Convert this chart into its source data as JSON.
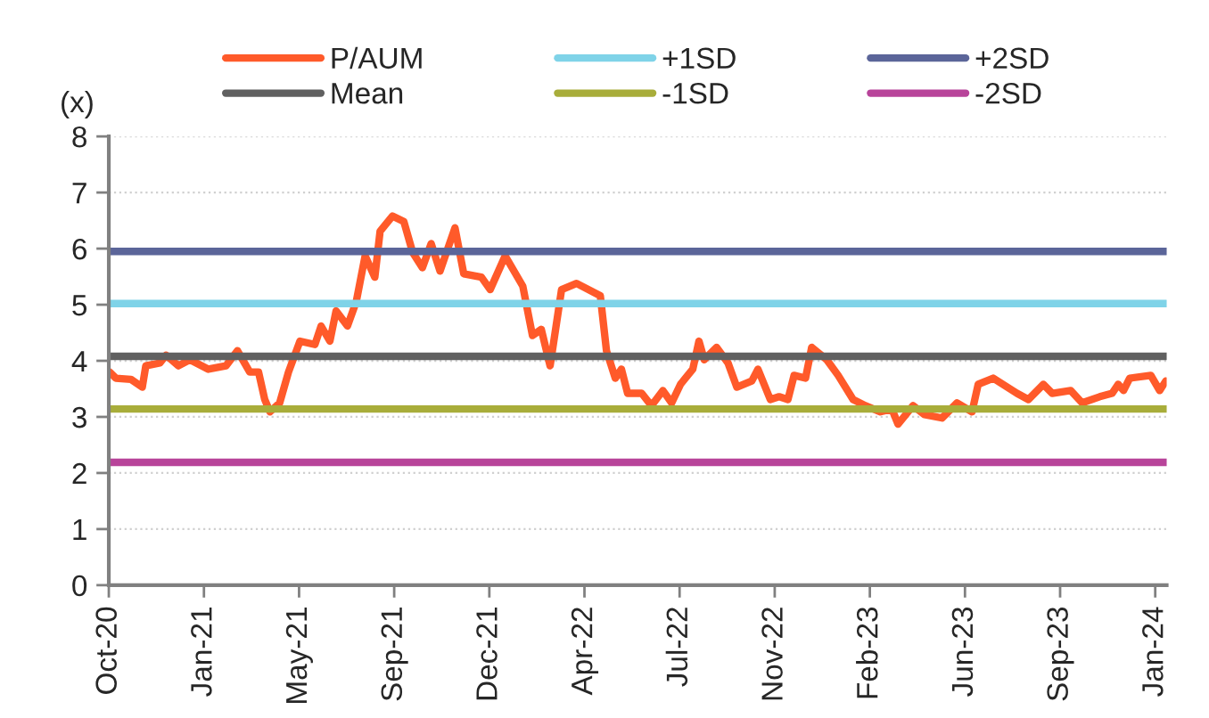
{
  "chart_data": {
    "type": "line",
    "ylabel": "(x)",
    "ylim": [
      0,
      8
    ],
    "yticks": [
      0,
      1,
      2,
      3,
      4,
      5,
      6,
      7,
      8
    ],
    "xlim": [
      "2020-10-15",
      "2024-01-29"
    ],
    "xticks": [
      {
        "value": "2020-10-15",
        "label": "Oct-20"
      },
      {
        "value": "2021-01-31",
        "label": "Jan-21"
      },
      {
        "value": "2021-05-19",
        "label": "May-21"
      },
      {
        "value": "2021-09-04",
        "label": "Sep-21"
      },
      {
        "value": "2021-12-21",
        "label": "Dec-21"
      },
      {
        "value": "2022-04-08",
        "label": "Apr-22"
      },
      {
        "value": "2022-07-25",
        "label": "Jul-22"
      },
      {
        "value": "2022-11-10",
        "label": "Nov-22"
      },
      {
        "value": "2023-02-26",
        "label": "Feb-23"
      },
      {
        "value": "2023-06-14",
        "label": "Jun-23"
      },
      {
        "value": "2023-09-30",
        "label": "Sep-23"
      },
      {
        "value": "2024-01-16",
        "label": "Jan-24"
      }
    ],
    "grid": "y",
    "legend": "top",
    "marker": "none",
    "line_style": "solid",
    "series": [
      {
        "name": "P/AUM",
        "color": "#ff5a2a",
        "x": [
          "2020-10-16",
          "2020-10-23",
          "2020-11-09",
          "2020-11-22",
          "2020-11-26",
          "2020-12-12",
          "2020-12-19",
          "2021-01-02",
          "2021-01-15",
          "2021-02-05",
          "2021-02-25",
          "2021-03-10",
          "2021-03-24",
          "2021-04-03",
          "2021-04-10",
          "2021-04-16",
          "2021-04-27",
          "2021-05-07",
          "2021-05-20",
          "2021-06-06",
          "2021-06-13",
          "2021-06-23",
          "2021-06-30",
          "2021-07-13",
          "2021-07-23",
          "2021-08-02",
          "2021-08-13",
          "2021-08-19",
          "2021-09-02",
          "2021-09-15",
          "2021-09-25",
          "2021-10-06",
          "2021-10-16",
          "2021-10-26",
          "2021-11-12",
          "2021-11-22",
          "2021-12-12",
          "2021-12-22",
          "2022-01-08",
          "2022-01-28",
          "2022-02-08",
          "2022-02-18",
          "2022-02-28",
          "2022-03-13",
          "2022-03-30",
          "2022-04-26",
          "2022-05-03",
          "2022-05-13",
          "2022-05-20",
          "2022-05-27",
          "2022-06-12",
          "2022-06-23",
          "2022-07-06",
          "2022-07-16",
          "2022-07-26",
          "2022-08-09",
          "2022-08-16",
          "2022-08-22",
          "2022-09-05",
          "2022-09-18",
          "2022-09-28",
          "2022-10-15",
          "2022-10-22",
          "2022-11-05",
          "2022-11-15",
          "2022-11-25",
          "2022-12-02",
          "2022-12-15",
          "2022-12-22",
          "2023-01-08",
          "2023-01-21",
          "2023-02-07",
          "2023-02-21",
          "2023-03-10",
          "2023-03-23",
          "2023-03-30",
          "2023-04-16",
          "2023-04-29",
          "2023-05-19",
          "2023-06-05",
          "2023-06-22",
          "2023-06-29",
          "2023-07-16",
          "2023-08-12",
          "2023-08-25",
          "2023-09-11",
          "2023-09-21",
          "2023-10-12",
          "2023-10-25",
          "2023-11-14",
          "2023-11-28",
          "2023-12-05",
          "2023-12-11",
          "2023-12-18",
          "2024-01-11",
          "2024-01-21",
          "2024-01-28"
        ],
        "values": [
          3.8,
          3.69,
          3.67,
          3.53,
          3.91,
          3.96,
          4.1,
          3.91,
          4.02,
          3.85,
          3.91,
          4.18,
          3.8,
          3.8,
          3.31,
          3.09,
          3.25,
          3.8,
          4.35,
          4.29,
          4.62,
          4.35,
          4.89,
          4.62,
          5.06,
          5.87,
          5.49,
          6.31,
          6.58,
          6.48,
          5.93,
          5.66,
          6.09,
          5.6,
          6.37,
          5.55,
          5.49,
          5.27,
          5.87,
          5.33,
          4.45,
          4.56,
          3.91,
          5.27,
          5.38,
          5.16,
          4.18,
          3.69,
          3.85,
          3.42,
          3.42,
          3.2,
          3.47,
          3.25,
          3.58,
          3.85,
          4.35,
          4.02,
          4.24,
          3.96,
          3.53,
          3.64,
          3.85,
          3.31,
          3.36,
          3.31,
          3.74,
          3.69,
          4.24,
          4.02,
          3.74,
          3.31,
          3.2,
          3.09,
          3.14,
          2.87,
          3.2,
          3.04,
          2.98,
          3.25,
          3.09,
          3.58,
          3.69,
          3.42,
          3.31,
          3.58,
          3.42,
          3.47,
          3.25,
          3.36,
          3.42,
          3.58,
          3.47,
          3.69,
          3.74,
          3.47,
          3.64
        ]
      },
      {
        "name": "Mean",
        "color": "#606060",
        "x": [
          "2020-10-15",
          "2024-01-29"
        ],
        "values": [
          4.08,
          4.08
        ]
      },
      {
        "name": "+1SD",
        "color": "#7fd3e8",
        "x": [
          "2020-10-15",
          "2024-01-29"
        ],
        "values": [
          5.02,
          5.02
        ]
      },
      {
        "name": "-1SD",
        "color": "#a8ad3a",
        "x": [
          "2020-10-15",
          "2024-01-29"
        ],
        "values": [
          3.14,
          3.14
        ]
      },
      {
        "name": "+2SD",
        "color": "#5b6599",
        "x": [
          "2020-10-15",
          "2024-01-29"
        ],
        "values": [
          5.95,
          5.95
        ]
      },
      {
        "name": "-2SD",
        "color": "#b8449a",
        "x": [
          "2020-10-15",
          "2024-01-29"
        ],
        "values": [
          2.19,
          2.19
        ]
      }
    ]
  }
}
